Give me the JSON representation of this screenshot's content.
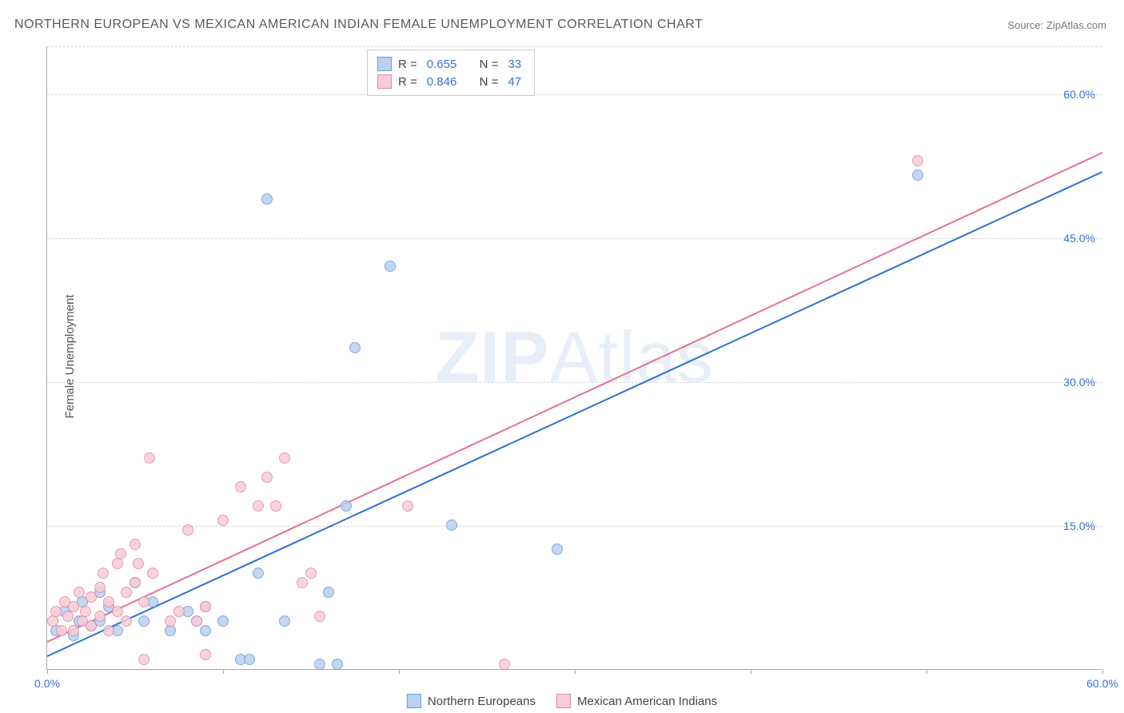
{
  "title": "NORTHERN EUROPEAN VS MEXICAN AMERICAN INDIAN FEMALE UNEMPLOYMENT CORRELATION CHART",
  "source_prefix": "Source: ",
  "source_name": "ZipAtlas.com",
  "ylabel": "Female Unemployment",
  "watermark_bold": "ZIP",
  "watermark_rest": "Atlas",
  "chart": {
    "type": "scatter-with-regression",
    "xlim": [
      0,
      60
    ],
    "ylim": [
      0,
      65
    ],
    "x_ticks": [
      0,
      10,
      20,
      30,
      40,
      50,
      60
    ],
    "x_tick_labels": {
      "0": "0.0%",
      "60": "60.0%"
    },
    "y_gridlines": [
      15,
      30,
      45,
      60,
      65
    ],
    "y_tick_labels": {
      "15": "15.0%",
      "30": "30.0%",
      "45": "45.0%",
      "60": "60.0%"
    },
    "background_color": "#ffffff",
    "grid_color": "#d8d8d8",
    "axis_color": "#a8a8a8",
    "tick_label_color": "#3a6fd8",
    "point_radius": 7,
    "series": [
      {
        "name": "Northern Europeans",
        "fill": "#b9d1ef",
        "stroke": "#6f9bd8",
        "line_color": "#2e6fd8",
        "R": "0.655",
        "N": "33",
        "regression": {
          "x1": 0,
          "y1": 1.5,
          "x2": 60,
          "y2": 52.0
        },
        "points": [
          [
            0.5,
            4.0
          ],
          [
            1.0,
            6.0
          ],
          [
            1.5,
            3.5
          ],
          [
            1.8,
            5.0
          ],
          [
            2.0,
            7.0
          ],
          [
            2.5,
            4.5
          ],
          [
            3.0,
            8.0
          ],
          [
            3.0,
            5.0
          ],
          [
            3.5,
            6.5
          ],
          [
            4.0,
            4.0
          ],
          [
            5.0,
            9.0
          ],
          [
            5.5,
            5.0
          ],
          [
            6.0,
            7.0
          ],
          [
            7.0,
            4.0
          ],
          [
            8.0,
            6.0
          ],
          [
            8.5,
            5.0
          ],
          [
            9.0,
            4.0
          ],
          [
            9.0,
            6.5
          ],
          [
            10.0,
            5.0
          ],
          [
            11.0,
            1.0
          ],
          [
            11.5,
            1.0
          ],
          [
            12.0,
            10.0
          ],
          [
            13.5,
            5.0
          ],
          [
            15.5,
            0.5
          ],
          [
            16.0,
            8.0
          ],
          [
            16.5,
            0.5
          ],
          [
            17.0,
            17.0
          ],
          [
            12.5,
            49.0
          ],
          [
            17.5,
            33.5
          ],
          [
            19.5,
            42.0
          ],
          [
            23.0,
            15.0
          ],
          [
            29.0,
            12.5
          ],
          [
            49.5,
            51.5
          ]
        ]
      },
      {
        "name": "Mexican American Indians",
        "fill": "#f6cdd8",
        "stroke": "#e48aa4",
        "line_color": "#e5718f",
        "R": "0.846",
        "N": "47",
        "regression": {
          "x1": 0,
          "y1": 3.0,
          "x2": 60,
          "y2": 54.0
        },
        "points": [
          [
            0.3,
            5.0
          ],
          [
            0.5,
            6.0
          ],
          [
            0.8,
            4.0
          ],
          [
            1.0,
            7.0
          ],
          [
            1.2,
            5.5
          ],
          [
            1.5,
            6.5
          ],
          [
            1.5,
            4.0
          ],
          [
            1.8,
            8.0
          ],
          [
            2.0,
            5.0
          ],
          [
            2.2,
            6.0
          ],
          [
            2.5,
            7.5
          ],
          [
            2.5,
            4.5
          ],
          [
            3.0,
            8.5
          ],
          [
            3.0,
            5.5
          ],
          [
            3.2,
            10.0
          ],
          [
            3.5,
            7.0
          ],
          [
            3.5,
            4.0
          ],
          [
            4.0,
            11.0
          ],
          [
            4.0,
            6.0
          ],
          [
            4.2,
            12.0
          ],
          [
            4.5,
            8.0
          ],
          [
            4.5,
            5.0
          ],
          [
            5.0,
            13.0
          ],
          [
            5.0,
            9.0
          ],
          [
            5.2,
            11.0
          ],
          [
            5.5,
            7.0
          ],
          [
            5.5,
            1.0
          ],
          [
            5.8,
            22.0
          ],
          [
            6.0,
            10.0
          ],
          [
            7.0,
            5.0
          ],
          [
            7.5,
            6.0
          ],
          [
            8.0,
            14.5
          ],
          [
            8.5,
            5.0
          ],
          [
            9.0,
            6.5
          ],
          [
            9.0,
            1.5
          ],
          [
            10.0,
            15.5
          ],
          [
            11.0,
            19.0
          ],
          [
            12.0,
            17.0
          ],
          [
            12.5,
            20.0
          ],
          [
            13.0,
            17.0
          ],
          [
            13.5,
            22.0
          ],
          [
            14.5,
            9.0
          ],
          [
            15.0,
            10.0
          ],
          [
            15.5,
            5.5
          ],
          [
            20.5,
            17.0
          ],
          [
            26.0,
            0.5
          ],
          [
            49.5,
            53.0
          ]
        ]
      }
    ]
  },
  "legend_top": {
    "R_label": "R =",
    "N_label": "N ="
  },
  "legend_bottom": [
    {
      "label": "Northern Europeans",
      "fill": "#b9d1ef",
      "stroke": "#6f9bd8"
    },
    {
      "label": "Mexican American Indians",
      "fill": "#f6cdd8",
      "stroke": "#e48aa4"
    }
  ]
}
